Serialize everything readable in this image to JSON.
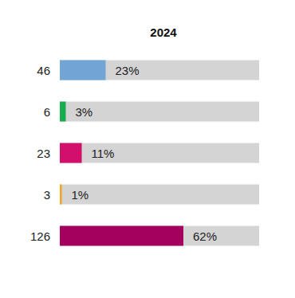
{
  "chart_data": {
    "type": "bar",
    "title": "2024",
    "orientation": "horizontal",
    "categories": [
      "46",
      "6",
      "23",
      "3",
      "126"
    ],
    "values": [
      23,
      3,
      11,
      1,
      62
    ],
    "value_labels": [
      "23%",
      "3%",
      "11%",
      "1%",
      "62%"
    ],
    "colors": [
      "#72a4d6",
      "#19ac4f",
      "#d20f6b",
      "#f6a51e",
      "#a4005e"
    ],
    "xlim": [
      0,
      100
    ],
    "data_labels": true,
    "tick_labels": "y",
    "grid": false
  }
}
